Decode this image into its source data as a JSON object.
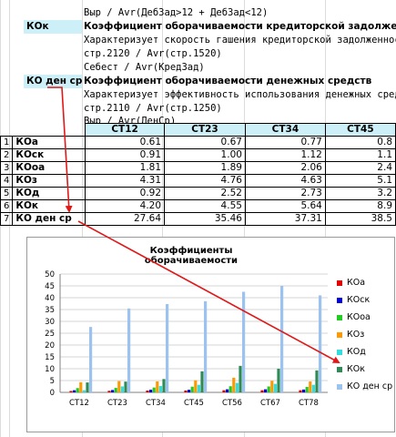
{
  "rows_top": [
    {
      "text": "Выр / Avr(ДебЗад>12 + ДебЗад<12)"
    },
    {
      "label": "КОк",
      "title": "Коэффициент оборачиваемости кредиторской задолженности"
    },
    {
      "text": "Характеризует скорость гашения кредиторской задолженности"
    },
    {
      "text": "стр.2120 / Avr(стр.1520)"
    },
    {
      "text": "Себест / Avr(КредЗад)"
    },
    {
      "label": "КО ден ср",
      "title": "Коэффициент оборачиваемости денежных средств"
    },
    {
      "text": "Характеризует эффективность использования  денежных средств"
    },
    {
      "text": "стр.2110 / Avr(стр.1250)"
    },
    {
      "text": "Выр / Avr(ДенСр)"
    }
  ],
  "table": {
    "columns": [
      "СТ12",
      "СТ23",
      "СТ34",
      "СТ45"
    ],
    "rows": [
      {
        "idx": "1",
        "name": "КОа",
        "values": [
          "0.61",
          "0.67",
          "0.77",
          "0.8"
        ]
      },
      {
        "idx": "2",
        "name": "КОск",
        "values": [
          "0.91",
          "1.00",
          "1.12",
          "1.1"
        ]
      },
      {
        "idx": "3",
        "name": "КОоа",
        "values": [
          "1.81",
          "1.89",
          "2.06",
          "2.4"
        ]
      },
      {
        "idx": "4",
        "name": "КОз",
        "values": [
          "4.31",
          "4.76",
          "4.63",
          "5.1"
        ]
      },
      {
        "idx": "5",
        "name": "КОд",
        "values": [
          "0.92",
          "2.52",
          "2.73",
          "3.2"
        ]
      },
      {
        "idx": "6",
        "name": "КОк",
        "values": [
          "4.20",
          "4.55",
          "5.64",
          "8.9"
        ]
      },
      {
        "idx": "7",
        "name": "КО ден ср",
        "values": [
          "27.64",
          "35.46",
          "37.31",
          "38.5"
        ]
      }
    ]
  },
  "chart_data": {
    "type": "bar",
    "title": "Коэффициенты оборачиваемости",
    "categories": [
      "СТ12",
      "СТ23",
      "СТ34",
      "СТ45",
      "СТ56",
      "СТ67",
      "СТ78"
    ],
    "ylim": [
      0,
      50
    ],
    "yticks": [
      "0",
      "5",
      "10",
      "15",
      "20",
      "25",
      "30",
      "35",
      "40",
      "45",
      "50"
    ],
    "legend_position": "right",
    "series": [
      {
        "name": "КОа",
        "color": "#e00000",
        "values": [
          0.61,
          0.67,
          0.77,
          0.8,
          0.9,
          0.9,
          0.9
        ]
      },
      {
        "name": "КОск",
        "color": "#0000d8",
        "values": [
          0.91,
          1.0,
          1.12,
          1.1,
          1.3,
          1.3,
          1.2
        ]
      },
      {
        "name": "КОоа",
        "color": "#22cc22",
        "values": [
          1.81,
          1.89,
          2.06,
          2.4,
          2.6,
          2.5,
          2.3
        ]
      },
      {
        "name": "КОз",
        "color": "#ff9900",
        "values": [
          4.31,
          4.76,
          4.63,
          5.1,
          6.2,
          4.9,
          4.6
        ]
      },
      {
        "name": "КОд",
        "color": "#33dddd",
        "values": [
          0.92,
          2.52,
          2.73,
          3.2,
          4.0,
          3.6,
          3.2
        ]
      },
      {
        "name": "КОк",
        "color": "#2e8b57",
        "values": [
          4.2,
          4.55,
          5.64,
          8.9,
          11.2,
          10.0,
          9.3
        ]
      },
      {
        "name": "КО ден ср",
        "color": "#9cc3f0",
        "values": [
          27.64,
          35.46,
          37.31,
          38.5,
          42.5,
          45.0,
          41.0
        ]
      }
    ]
  }
}
